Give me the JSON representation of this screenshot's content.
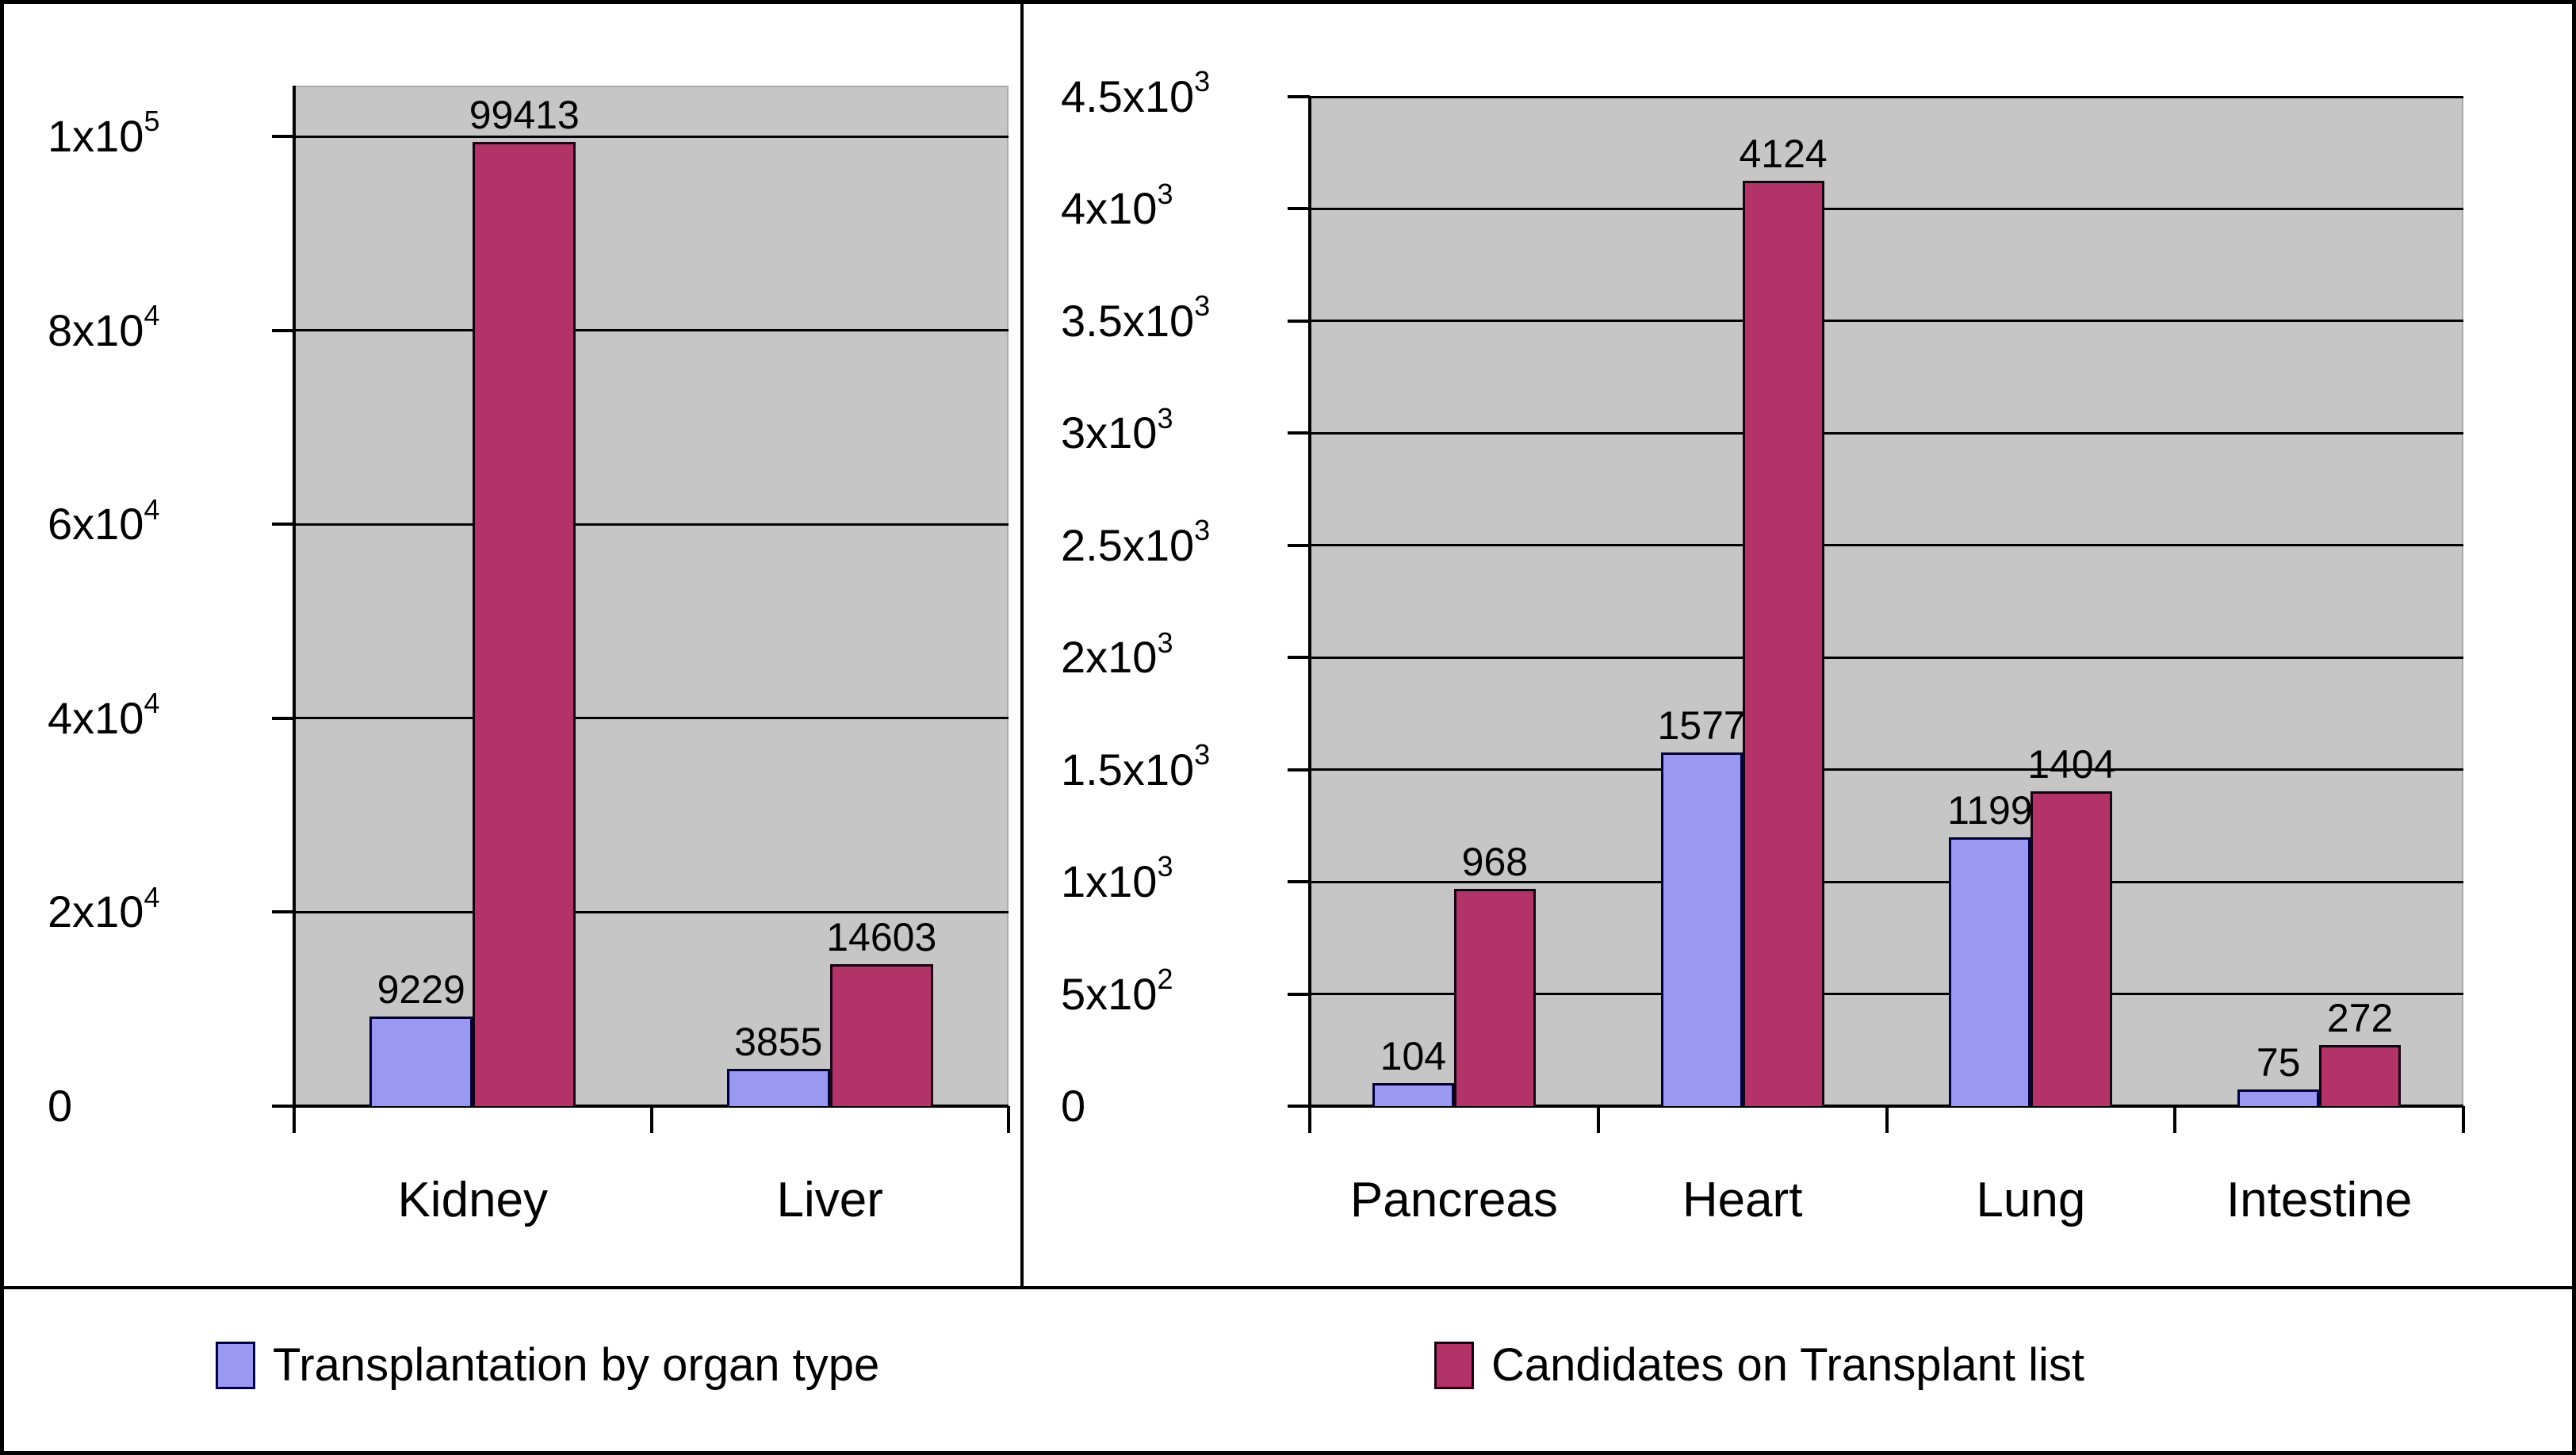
{
  "legend": {
    "items": [
      {
        "label": "Transplantation by organ type",
        "swatch_color": "#9B98F2",
        "swatch_border": "#000040"
      },
      {
        "label": "Candidates on Transplant list",
        "swatch_color": "#B23368",
        "swatch_border": "#1C0010"
      }
    ]
  },
  "colors": {
    "figure_background": "#FFFFFF",
    "plot_background": "#C6C6C6",
    "grid_line": "#000000",
    "axis_line": "#000000",
    "text": "#000000",
    "series_transplantation_fill": "#9B98F2",
    "series_transplantation_border": "#000040",
    "series_candidates_fill": "#B23368",
    "series_candidates_border": "#1C0010"
  },
  "chart_data": [
    {
      "type": "bar",
      "panel": "left",
      "title": "",
      "xlabel": "",
      "ylabel": "",
      "categories": [
        "Kidney",
        "Liver"
      ],
      "series": [
        {
          "name": "Transplantation by organ type",
          "values": [
            9229,
            3855
          ]
        },
        {
          "name": "Candidates on Transplant list",
          "values": [
            99413,
            14603
          ]
        }
      ],
      "bar_value_labels": [
        [
          "9229",
          "3855"
        ],
        [
          "99413",
          "14603"
        ]
      ],
      "ylim": [
        0,
        105000
      ],
      "ytick_interval": 20000,
      "yticks": [
        {
          "base": "0",
          "sup": "",
          "value": 0
        },
        {
          "base": "2x10",
          "sup": "4",
          "value": 20000
        },
        {
          "base": "4x10",
          "sup": "4",
          "value": 40000
        },
        {
          "base": "6x10",
          "sup": "4",
          "value": 60000
        },
        {
          "base": "8x10",
          "sup": "4",
          "value": 80000
        },
        {
          "base": "1x10",
          "sup": "5",
          "value": 100000
        }
      ],
      "grid": true,
      "legend_position": "bottom"
    },
    {
      "type": "bar",
      "panel": "right",
      "title": "",
      "xlabel": "",
      "ylabel": "",
      "categories": [
        "Pancreas",
        "Heart",
        "Lung",
        "Intestine"
      ],
      "series": [
        {
          "name": "Transplantation by organ type",
          "values": [
            104,
            1577,
            1199,
            75
          ]
        },
        {
          "name": "Candidates on Transplant list",
          "values": [
            968,
            4124,
            1404,
            272
          ]
        }
      ],
      "bar_value_labels": [
        [
          "104",
          "1577",
          "1199",
          "75"
        ],
        [
          "968",
          "4124",
          "1404",
          "272"
        ]
      ],
      "ylim": [
        0,
        4500
      ],
      "ytick_interval": 500,
      "yticks": [
        {
          "base": "0",
          "sup": "",
          "value": 0
        },
        {
          "base": "5x10",
          "sup": "2",
          "value": 500
        },
        {
          "base": "1x10",
          "sup": "3",
          "value": 1000
        },
        {
          "base": "1.5x10",
          "sup": "3",
          "value": 1500
        },
        {
          "base": "2x10",
          "sup": "3",
          "value": 2000
        },
        {
          "base": "2.5x10",
          "sup": "3",
          "value": 2500
        },
        {
          "base": "3x10",
          "sup": "3",
          "value": 3000
        },
        {
          "base": "3.5x10",
          "sup": "3",
          "value": 3500
        },
        {
          "base": "4x10",
          "sup": "3",
          "value": 4000
        },
        {
          "base": "4.5x10",
          "sup": "3",
          "value": 4500
        }
      ],
      "grid": true,
      "legend_position": "bottom"
    }
  ]
}
